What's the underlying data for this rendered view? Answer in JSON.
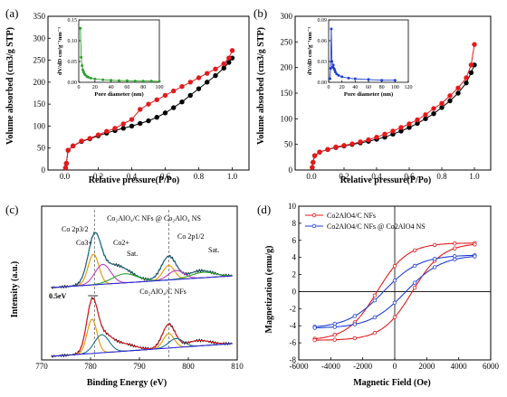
{
  "chart_data": [
    {
      "id": "a",
      "type": "line",
      "panel_label": "(a)",
      "xlabel": "Relative pressure(P/Po)",
      "ylabel": "Volume absorbed (cm3/g STP)",
      "xlim": [
        -0.1,
        1.1
      ],
      "ylim": [
        0,
        350
      ],
      "xticks": [
        "0.0",
        "0.2",
        "0.4",
        "0.6",
        "0.8",
        "1.0"
      ],
      "yticks": [
        "0",
        "50",
        "100",
        "150",
        "200",
        "250",
        "300",
        "350"
      ],
      "series": [
        {
          "color": "#e41a1c",
          "x": [
            0.005,
            0.01,
            0.02,
            0.05,
            0.1,
            0.15,
            0.2,
            0.25,
            0.3,
            0.35,
            0.4,
            0.45,
            0.5,
            0.55,
            0.6,
            0.65,
            0.7,
            0.75,
            0.8,
            0.85,
            0.9,
            0.95,
            0.98,
            1.0
          ],
          "y": [
            5,
            15,
            45,
            55,
            66,
            72,
            80,
            88,
            95,
            105,
            115,
            138,
            150,
            160,
            170,
            180,
            190,
            200,
            210,
            220,
            230,
            242,
            255,
            272
          ]
        },
        {
          "color": "#000000",
          "x": [
            0.005,
            0.01,
            0.02,
            0.05,
            0.1,
            0.15,
            0.2,
            0.25,
            0.3,
            0.35,
            0.4,
            0.45,
            0.5,
            0.55,
            0.6,
            0.65,
            0.7,
            0.75,
            0.8,
            0.85,
            0.9,
            0.95,
            0.98,
            1.0
          ],
          "y": [
            5,
            15,
            45,
            55,
            65,
            71,
            78,
            84,
            90,
            95,
            100,
            106,
            112,
            120,
            130,
            142,
            155,
            170,
            185,
            200,
            215,
            232,
            245,
            255
          ]
        }
      ],
      "inset": {
        "xlabel": "Pore diameter (nm)",
        "ylabel": "dV/dD cm³g⁻¹nm⁻¹",
        "xlim": [
          0,
          100
        ],
        "ylim": [
          0,
          0.15
        ],
        "xticks": [
          "0",
          "20",
          "40",
          "60",
          "80",
          "100"
        ],
        "yticks": [
          "0.00",
          "0.05",
          "0.10",
          "0.15"
        ],
        "color": "#2ca02c",
        "x": [
          2,
          3,
          4,
          5,
          6,
          7,
          8,
          10,
          12,
          15,
          20,
          30,
          40,
          50,
          60,
          70,
          80,
          90,
          100
        ],
        "y": [
          0.13,
          0.06,
          0.04,
          0.03,
          0.025,
          0.02,
          0.018,
          0.014,
          0.012,
          0.01,
          0.008,
          0.006,
          0.005,
          0.004,
          0.004,
          0.003,
          0.003,
          0.003,
          0.002
        ]
      }
    },
    {
      "id": "b",
      "type": "line",
      "panel_label": "(b)",
      "xlabel": "Relative pressure(P/Po)",
      "ylabel": "Volume absorbed (cm3/g STP)",
      "xlim": [
        -0.1,
        1.1
      ],
      "ylim": [
        0,
        300
      ],
      "xticks": [
        "0.0",
        "0.2",
        "0.4",
        "0.6",
        "0.8",
        "1.0"
      ],
      "yticks": [
        "0",
        "50",
        "100",
        "150",
        "200",
        "250",
        "300"
      ],
      "series": [
        {
          "color": "#e41a1c",
          "x": [
            0.005,
            0.01,
            0.02,
            0.05,
            0.1,
            0.15,
            0.2,
            0.25,
            0.3,
            0.35,
            0.4,
            0.45,
            0.5,
            0.55,
            0.6,
            0.65,
            0.7,
            0.75,
            0.8,
            0.85,
            0.9,
            0.95,
            0.98,
            1.0
          ],
          "y": [
            5,
            15,
            28,
            35,
            40,
            45,
            48,
            51,
            55,
            59,
            64,
            70,
            76,
            83,
            90,
            98,
            108,
            120,
            130,
            145,
            160,
            180,
            205,
            245
          ]
        },
        {
          "color": "#000000",
          "x": [
            0.005,
            0.01,
            0.02,
            0.05,
            0.1,
            0.15,
            0.2,
            0.25,
            0.3,
            0.35,
            0.4,
            0.45,
            0.5,
            0.55,
            0.6,
            0.65,
            0.7,
            0.75,
            0.8,
            0.85,
            0.9,
            0.95,
            0.98,
            1.0
          ],
          "y": [
            5,
            15,
            28,
            35,
            40,
            44,
            47,
            50,
            53,
            56,
            60,
            64,
            70,
            76,
            83,
            91,
            100,
            110,
            122,
            135,
            150,
            170,
            190,
            205
          ]
        }
      ],
      "inset": {
        "xlabel": "Pore diameter (nm)",
        "ylabel": "dV/dD cm³g⁻¹nm⁻¹",
        "xlim": [
          0,
          120
        ],
        "ylim": [
          0,
          0.09
        ],
        "xticks": [
          "0",
          "20",
          "40",
          "60",
          "80",
          "100",
          "120"
        ],
        "yticks": [
          "0.00",
          "0.03",
          "0.06",
          "0.09"
        ],
        "color": "#1f3fd1",
        "x": [
          2,
          3,
          4,
          5,
          6,
          7,
          8,
          9,
          10,
          12,
          15,
          20,
          30,
          40,
          60,
          80,
          100
        ],
        "y": [
          0.005,
          0.02,
          0.077,
          0.03,
          0.022,
          0.025,
          0.02,
          0.018,
          0.015,
          0.012,
          0.01,
          0.008,
          0.006,
          0.005,
          0.004,
          0.003,
          0.003
        ]
      }
    },
    {
      "id": "c",
      "type": "line",
      "panel_label": "(c)",
      "xlabel": "Binding Energy (eV)",
      "ylabel": "Intensity (a.u.)",
      "xlim": [
        770,
        810
      ],
      "xticks": [
        "770",
        "780",
        "790",
        "800",
        "810"
      ],
      "annotations": {
        "top_title": "Co₂AlO₄/C NFs @ Co₂AlO₄ NS",
        "bottom_title": "Co₂AlO₄/C NFs",
        "co2p32": "Co 2p3/2",
        "co2p12": "Co 2p1/2",
        "co3": "Co3+",
        "co2": "Co2+",
        "sat1": "Sat.",
        "sat2": "Sat.",
        "shift": "0.5eV"
      }
    },
    {
      "id": "d",
      "type": "line",
      "panel_label": "(d)",
      "xlabel": "Magnetic Field (Oe)",
      "ylabel": "Magnetization (emu/g)",
      "xlim": [
        -6000,
        6000
      ],
      "ylim": [
        -8,
        10
      ],
      "xticks": [
        "-6000",
        "-4000",
        "-2000",
        "0",
        "2000",
        "4000",
        "6000"
      ],
      "yticks": [
        "-8",
        "-6",
        "-4",
        "-2",
        "0",
        "2",
        "4",
        "6",
        "8",
        "10"
      ],
      "legend_position": "top-left",
      "series": [
        {
          "name": "Co2AlO4/C NFs",
          "color": "#e41a1c",
          "Ms": 5.7,
          "Hc": 1100,
          "Mr": 3.0
        },
        {
          "name": "Co2AlO4/C NFs @ Co2AlO4 NS",
          "color": "#1f3fd1",
          "Ms": 4.3,
          "Hc": 700,
          "Mr": 1.3
        }
      ]
    }
  ]
}
